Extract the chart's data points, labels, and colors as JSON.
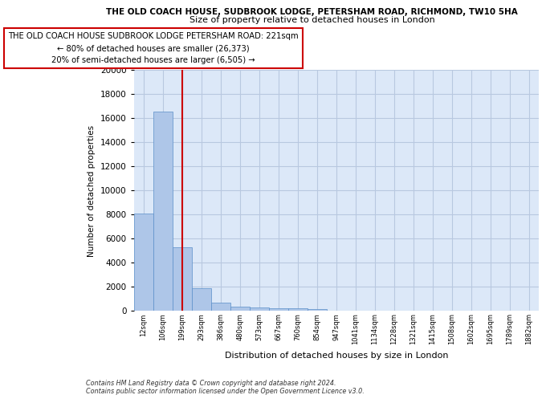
{
  "title_main": "THE OLD COACH HOUSE, SUDBROOK LODGE, PETERSHAM ROAD, RICHMOND, TW10 5HA",
  "title_sub": "Size of property relative to detached houses in London",
  "xlabel": "Distribution of detached houses by size in London",
  "ylabel": "Number of detached properties",
  "categories": [
    "12sqm",
    "106sqm",
    "199sqm",
    "293sqm",
    "386sqm",
    "480sqm",
    "573sqm",
    "667sqm",
    "760sqm",
    "854sqm",
    "947sqm",
    "1041sqm",
    "1134sqm",
    "1228sqm",
    "1321sqm",
    "1415sqm",
    "1508sqm",
    "1602sqm",
    "1695sqm",
    "1789sqm",
    "1882sqm"
  ],
  "values": [
    8100,
    16500,
    5300,
    1850,
    700,
    350,
    270,
    220,
    180,
    160,
    0,
    0,
    0,
    0,
    0,
    0,
    0,
    0,
    0,
    0,
    0
  ],
  "bar_color": "#aec6e8",
  "bar_edge_color": "#5b8fc9",
  "vline_x": 2,
  "vline_color": "#cc0000",
  "ylim": [
    0,
    20000
  ],
  "yticks": [
    0,
    2000,
    4000,
    6000,
    8000,
    10000,
    12000,
    14000,
    16000,
    18000,
    20000
  ],
  "annotation_box_text": "THE OLD COACH HOUSE SUDBROOK LODGE PETERSHAM ROAD: 221sqm\n← 80% of detached houses are smaller (26,373)\n20% of semi-detached houses are larger (6,505) →",
  "annotation_box_color": "#cc0000",
  "footer_text": "Contains HM Land Registry data © Crown copyright and database right 2024.\nContains public sector information licensed under the Open Government Licence v3.0.",
  "background_color": "#dce8f8",
  "grid_color": "#b8c8e0"
}
